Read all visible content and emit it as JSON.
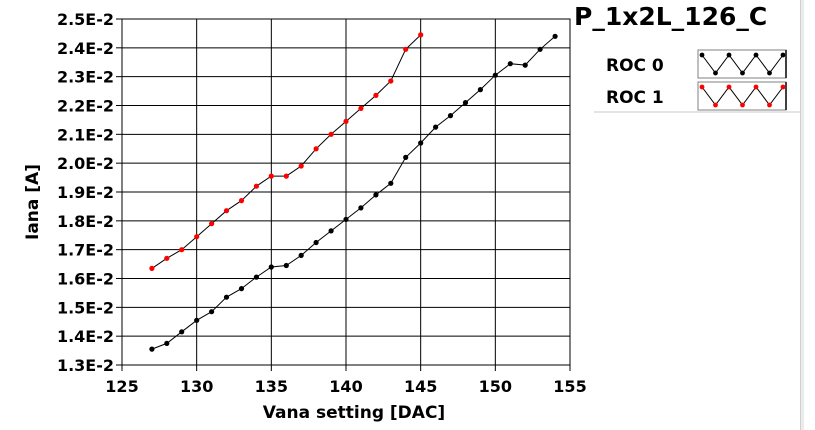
{
  "title": "P_1x2L_126_C",
  "chart_data": {
    "type": "line",
    "xlabel": "Vana setting [DAC]",
    "ylabel": "Iana [A]",
    "xlim": [
      125,
      155
    ],
    "ylim": [
      0.013,
      0.025
    ],
    "xticks": [
      "125",
      "130",
      "135",
      "140",
      "145",
      "150",
      "155"
    ],
    "yticks": [
      "1.3E-2",
      "1.4E-2",
      "1.5E-2",
      "1.6E-2",
      "1.7E-2",
      "1.8E-2",
      "1.9E-2",
      "2.0E-2",
      "2.1E-2",
      "2.2E-2",
      "2.3E-2",
      "2.4E-2",
      "2.5E-2"
    ],
    "grid": true,
    "legend_position": "top-right",
    "series": [
      {
        "name": "ROC 0",
        "color": "#000000",
        "x": [
          127,
          128,
          129,
          130,
          131,
          132,
          133,
          134,
          135,
          136,
          137,
          138,
          139,
          140,
          141,
          142,
          143,
          144,
          145,
          146,
          147,
          148,
          149,
          150,
          151,
          152,
          153,
          154
        ],
        "y": [
          0.01355,
          0.01375,
          0.01415,
          0.01455,
          0.01485,
          0.01535,
          0.01565,
          0.01605,
          0.0164,
          0.01645,
          0.0168,
          0.01725,
          0.01765,
          0.01805,
          0.01845,
          0.0189,
          0.0193,
          0.0202,
          0.0207,
          0.02125,
          0.02165,
          0.0221,
          0.02255,
          0.02305,
          0.02345,
          0.0234,
          0.02395,
          0.0244
        ]
      },
      {
        "name": "ROC 1",
        "color": "#ff0000",
        "x": [
          127,
          128,
          129,
          130,
          131,
          132,
          133,
          134,
          135,
          136,
          137,
          138,
          139,
          140,
          141,
          142,
          143,
          144,
          145
        ],
        "y": [
          0.01635,
          0.0167,
          0.017,
          0.01745,
          0.0179,
          0.01835,
          0.0187,
          0.0192,
          0.01955,
          0.01955,
          0.0199,
          0.0205,
          0.021,
          0.02145,
          0.0219,
          0.02235,
          0.02285,
          0.02395,
          0.02445
        ]
      }
    ]
  }
}
